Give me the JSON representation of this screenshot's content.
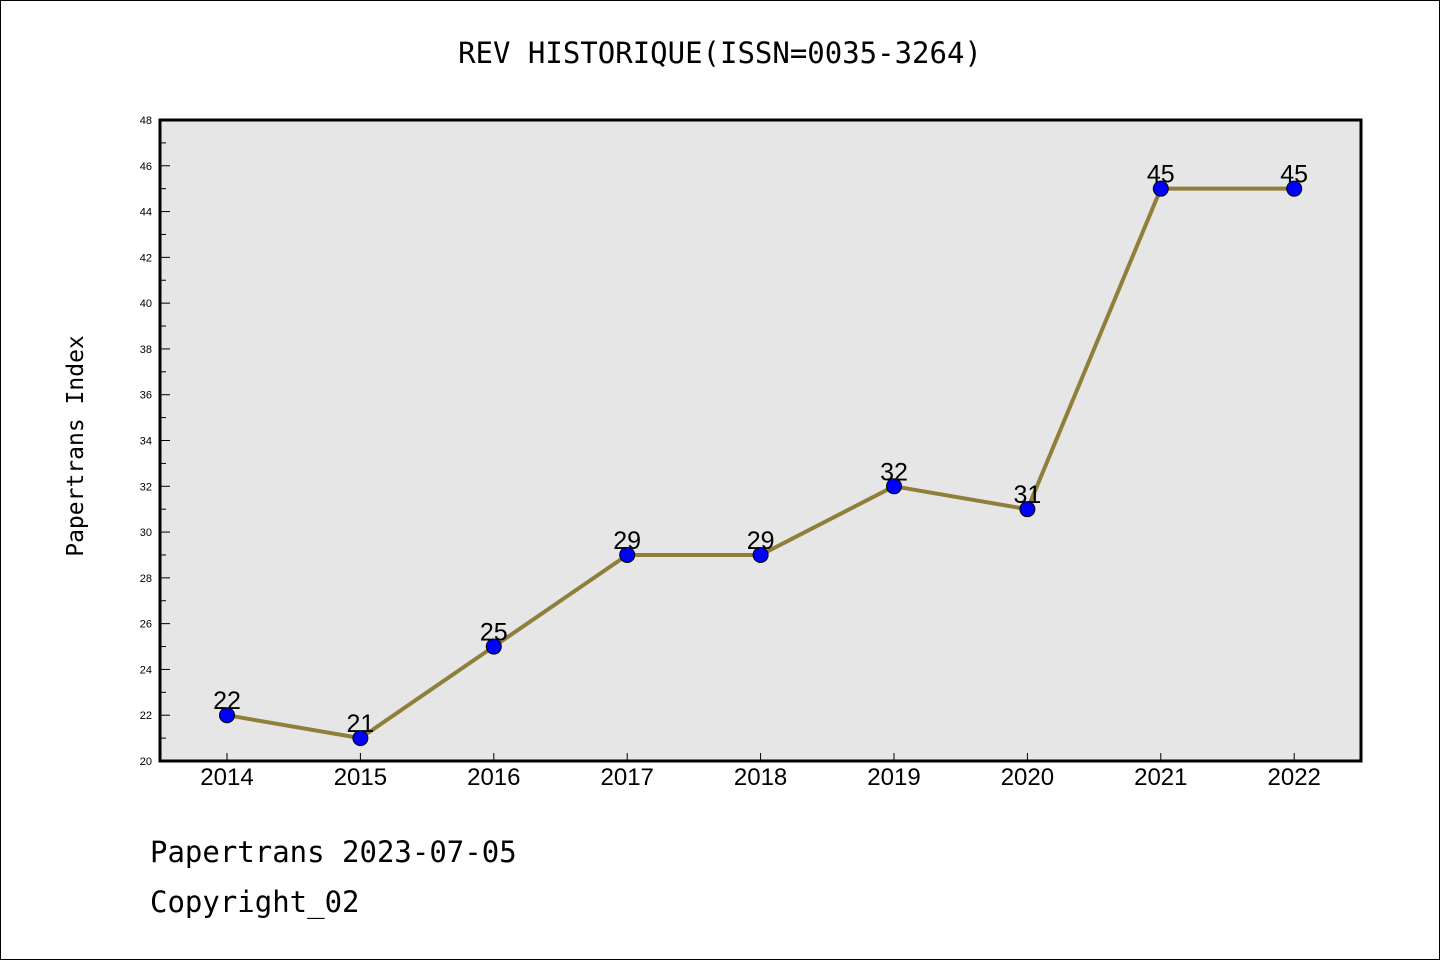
{
  "chart_data": {
    "type": "line",
    "title": "REV HISTORIQUE(ISSN=0035-3264)",
    "xlabel": "",
    "ylabel": "Papertrans Index",
    "categories": [
      "2014",
      "2015",
      "2016",
      "2017",
      "2018",
      "2019",
      "2020",
      "2021",
      "2022"
    ],
    "series": [
      {
        "values": [
          22,
          21,
          25,
          29,
          29,
          32,
          31,
          45,
          45
        ]
      }
    ],
    "data_labels": [
      "22",
      "21",
      "25",
      "29",
      "29",
      "32",
      "31",
      "45",
      "45"
    ],
    "ylim": [
      20,
      48
    ],
    "yticks": [
      "20",
      "22",
      "24",
      "26",
      "28",
      "30",
      "32",
      "34",
      "36",
      "38",
      "40",
      "42",
      "44",
      "46",
      "48"
    ],
    "grid": false,
    "colors": {
      "line": "#8f7f3b",
      "marker": "#0000ff",
      "plot_background": "#e6e6e6"
    }
  },
  "footer": {
    "date_line": "Papertrans 2023-07-05",
    "copyright": "Copyright_02"
  }
}
